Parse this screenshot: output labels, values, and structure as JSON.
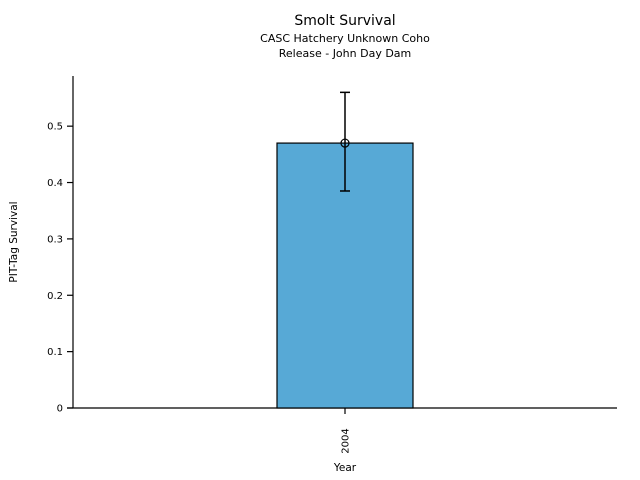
{
  "figure": {
    "background_color": "#ffffff",
    "text_color": "#000000"
  },
  "chart_data": {
    "type": "bar",
    "title": "Smolt Survival",
    "subtitle_line1": "CASC Hatchery Unknown Coho",
    "subtitle_line2": "Release - John Day Dam",
    "xlabel": "Year",
    "ylabel": "PIT-Tag Survival",
    "categories": [
      "2004"
    ],
    "values": [
      0.47
    ],
    "error_low": [
      0.385
    ],
    "error_high": [
      0.56
    ],
    "marker": "open-circle",
    "yticks": [
      0,
      0.1,
      0.2,
      0.3,
      0.4,
      0.5
    ],
    "ytick_labels": [
      "0",
      "0.1",
      "0.2",
      "0.3",
      "0.4",
      "0.5"
    ],
    "ylim": [
      0,
      0.589
    ],
    "grid": false,
    "legend_position": "none",
    "bar_color": "#57A9D6",
    "bar_edge_color": "#000000",
    "error_bar_color": "#000000",
    "axis_color": "#000000"
  }
}
